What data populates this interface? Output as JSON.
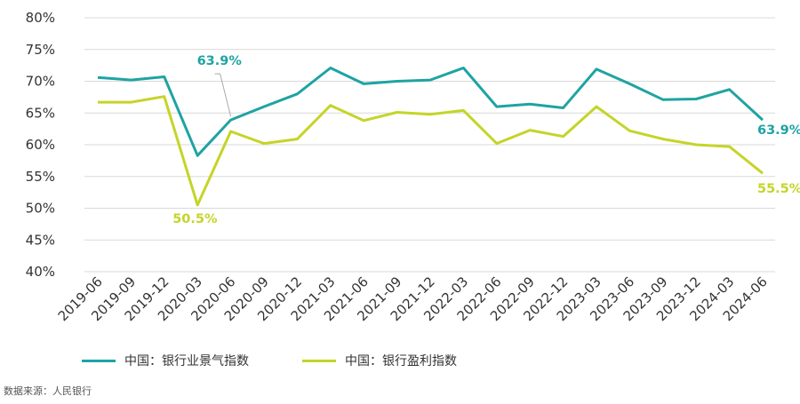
{
  "chart_data": {
    "type": "line",
    "categories": [
      "2019-06",
      "2019-09",
      "2019-12",
      "2020-03",
      "2020-06",
      "2020-09",
      "2020-12",
      "2021-03",
      "2021-06",
      "2021-09",
      "2021-12",
      "2022-03",
      "2022-06",
      "2022-09",
      "2022-12",
      "2023-03",
      "2023-06",
      "2023-09",
      "2023-12",
      "2024-03",
      "2024-06"
    ],
    "series": [
      {
        "name": "中国：银行业景气指数",
        "color": "#1fa3a3",
        "values": [
          70.6,
          70.2,
          70.7,
          58.3,
          63.9,
          66.0,
          68.0,
          72.1,
          69.6,
          70.0,
          70.2,
          72.1,
          66.0,
          66.4,
          65.8,
          71.9,
          69.6,
          67.1,
          67.2,
          68.7,
          63.9
        ]
      },
      {
        "name": "中国：银行盈利指数",
        "color": "#c5d428",
        "values": [
          66.7,
          66.7,
          67.6,
          50.5,
          62.1,
          60.2,
          60.9,
          66.2,
          63.8,
          65.1,
          64.8,
          65.4,
          60.2,
          62.3,
          61.3,
          66.0,
          62.2,
          60.9,
          60.0,
          59.7,
          55.5
        ]
      }
    ],
    "ylim": [
      40,
      80
    ],
    "yticks": [
      "40%",
      "45%",
      "50%",
      "55%",
      "60%",
      "65%",
      "70%",
      "75%",
      "80%"
    ],
    "annotations": [
      {
        "text": "63.9%",
        "series": 0,
        "index": 4
      },
      {
        "text": "50.5%",
        "series": 1,
        "index": 3
      },
      {
        "text": "63.9%",
        "series": 0,
        "index": 20
      },
      {
        "text": "55.5%",
        "series": 1,
        "index": 20
      }
    ],
    "grid": true,
    "legend_position": "bottom"
  },
  "source_text": "数据来源：人民银行"
}
